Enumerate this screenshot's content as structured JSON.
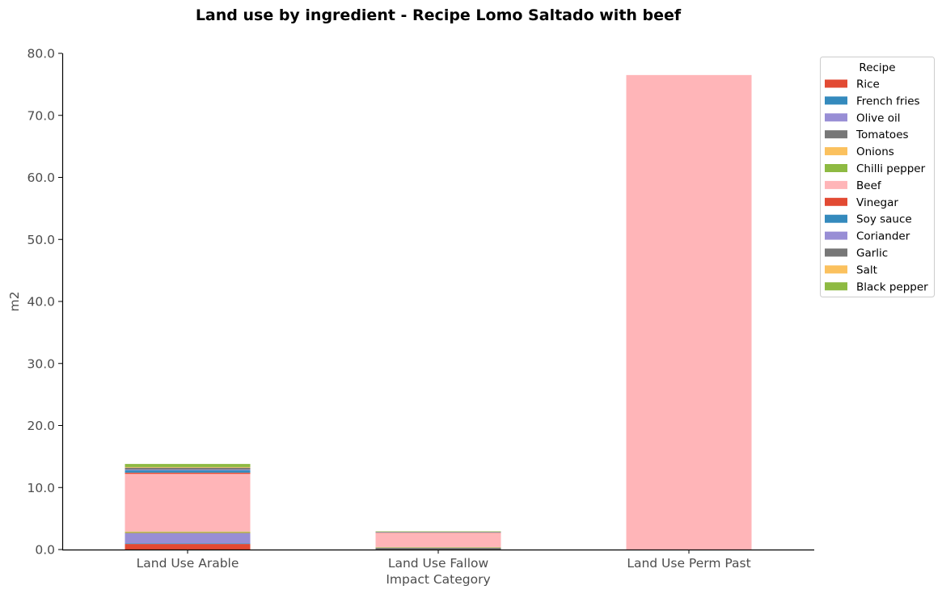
{
  "chart_data": {
    "type": "bar",
    "stacked": true,
    "title": "Land use by ingredient - Recipe Lomo Saltado with beef",
    "xlabel": "Impact Category",
    "ylabel": "m2",
    "ylim": [
      0,
      80
    ],
    "yticks": [
      "0.0",
      "10.0",
      "20.0",
      "30.0",
      "40.0",
      "50.0",
      "60.0",
      "70.0",
      "80.0"
    ],
    "grid": false,
    "legend_position": "top-right, outside plot",
    "legend_title": "Recipe",
    "categories": [
      "Land Use Arable",
      "Land Use Fallow",
      "Land Use Perm Past"
    ],
    "series": [
      {
        "name": "Rice",
        "color": "#E24A33",
        "values": [
          0.9,
          0.0,
          0.0
        ]
      },
      {
        "name": "French fries",
        "color": "#348ABD",
        "values": [
          0.1,
          0.0,
          0.0
        ]
      },
      {
        "name": "Olive oil",
        "color": "#988ED5",
        "values": [
          1.6,
          0.0,
          0.0
        ]
      },
      {
        "name": "Tomatoes",
        "color": "#777777",
        "values": [
          0.1,
          0.3,
          0.0
        ]
      },
      {
        "name": "Onions",
        "color": "#FBC15E",
        "values": [
          0.1,
          0.05,
          0.0
        ]
      },
      {
        "name": "Chilli pepper",
        "color": "#8EBA42",
        "values": [
          0.1,
          0.05,
          0.0
        ]
      },
      {
        "name": "Beef",
        "color": "#FFB5B8",
        "values": [
          9.3,
          2.3,
          76.5
        ]
      },
      {
        "name": "Vinegar",
        "color": "#E24A33",
        "values": [
          0.2,
          0.05,
          0.0
        ]
      },
      {
        "name": "Soy sauce",
        "color": "#348ABD",
        "values": [
          0.4,
          0.05,
          0.0
        ]
      },
      {
        "name": "Coriander",
        "color": "#988ED5",
        "values": [
          0.1,
          0.0,
          0.0
        ]
      },
      {
        "name": "Garlic",
        "color": "#777777",
        "values": [
          0.3,
          0.05,
          0.0
        ]
      },
      {
        "name": "Salt",
        "color": "#FBC15E",
        "values": [
          0.1,
          0.05,
          0.0
        ]
      },
      {
        "name": "Black pepper",
        "color": "#8EBA42",
        "values": [
          0.5,
          0.05,
          0.0
        ]
      }
    ]
  }
}
